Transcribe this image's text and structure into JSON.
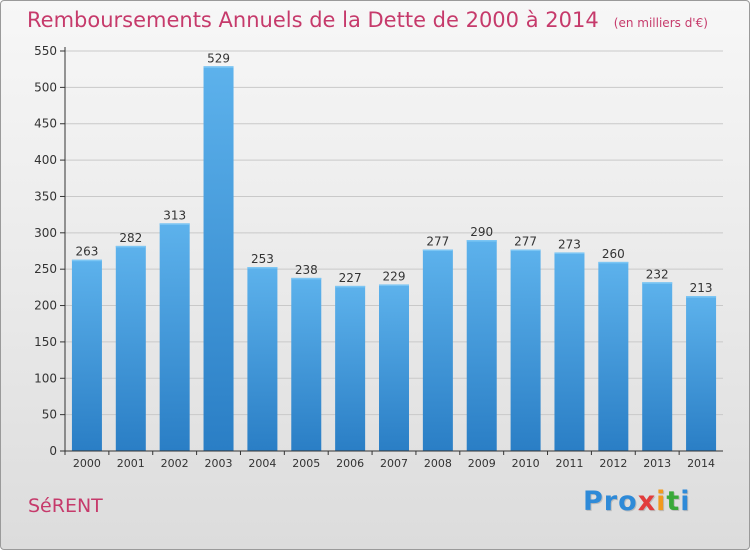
{
  "header": {
    "title": "Remboursements Annuels de la Dette de 2000 à 2014",
    "unit": "(en milliers d'€)"
  },
  "footer": {
    "commune": "SéRENT",
    "logo": "Proxiti",
    "logo_letters": [
      {
        "ch": "P",
        "color": "#2e8ad8"
      },
      {
        "ch": "r",
        "color": "#2e8ad8"
      },
      {
        "ch": "o",
        "color": "#2e8ad8"
      },
      {
        "ch": "x",
        "color": "#e23c3c"
      },
      {
        "ch": "i",
        "color": "#f29a1e"
      },
      {
        "ch": "t",
        "color": "#3aa93a"
      },
      {
        "ch": "i",
        "color": "#2e8ad8"
      }
    ]
  },
  "colors": {
    "bar_top": "#5db2ec",
    "bar_bottom": "#2a7ec5",
    "grid": "#c9c9c9",
    "axis": "#333333",
    "accent": "#c63a6b"
  },
  "chart_data": {
    "type": "bar",
    "title": "Remboursements Annuels de la Dette de 2000 à 2014",
    "subtitle": "(en milliers d'€)",
    "xlabel": "",
    "ylabel": "",
    "categories": [
      "2000",
      "2001",
      "2002",
      "2003",
      "2004",
      "2005",
      "2006",
      "2007",
      "2008",
      "2009",
      "2010",
      "2011",
      "2012",
      "2013",
      "2014"
    ],
    "values": [
      263,
      282,
      313,
      529,
      253,
      238,
      227,
      229,
      277,
      290,
      277,
      273,
      260,
      232,
      213
    ],
    "ylim": [
      0,
      550
    ],
    "yticks": [
      0,
      50,
      100,
      150,
      200,
      250,
      300,
      350,
      400,
      450,
      500,
      550
    ],
    "grid": true,
    "legend": "none",
    "data_labels": true
  }
}
